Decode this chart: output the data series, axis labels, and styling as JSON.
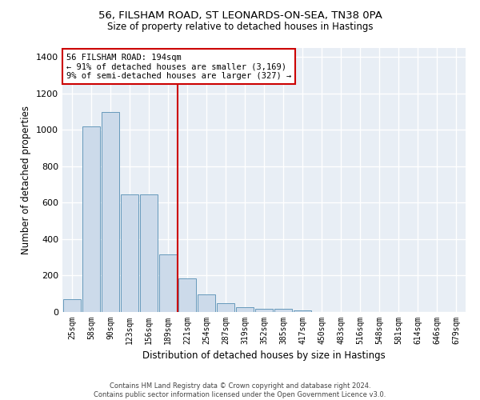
{
  "title_line1": "56, FILSHAM ROAD, ST LEONARDS-ON-SEA, TN38 0PA",
  "title_line2": "Size of property relative to detached houses in Hastings",
  "xlabel": "Distribution of detached houses by size in Hastings",
  "ylabel": "Number of detached properties",
  "bar_color": "#ccdaea",
  "bar_edge_color": "#6699bb",
  "background_color": "#e8eef5",
  "grid_color": "#ffffff",
  "annotation_line_color": "#cc0000",
  "annotation_box_color": "#cc0000",
  "annotation_text": "56 FILSHAM ROAD: 194sqm\n← 91% of detached houses are smaller (3,169)\n9% of semi-detached houses are larger (327) →",
  "categories": [
    "25sqm",
    "58sqm",
    "90sqm",
    "123sqm",
    "156sqm",
    "189sqm",
    "221sqm",
    "254sqm",
    "287sqm",
    "319sqm",
    "352sqm",
    "385sqm",
    "417sqm",
    "450sqm",
    "483sqm",
    "516sqm",
    "548sqm",
    "581sqm",
    "614sqm",
    "646sqm",
    "679sqm"
  ],
  "values": [
    70,
    1020,
    1100,
    648,
    648,
    315,
    185,
    95,
    50,
    25,
    18,
    18,
    10,
    0,
    0,
    0,
    0,
    0,
    0,
    0,
    0
  ],
  "ylim": [
    0,
    1450
  ],
  "vline_x": 5.5,
  "footer": "Contains HM Land Registry data © Crown copyright and database right 2024.\nContains public sector information licensed under the Open Government Licence v3.0."
}
